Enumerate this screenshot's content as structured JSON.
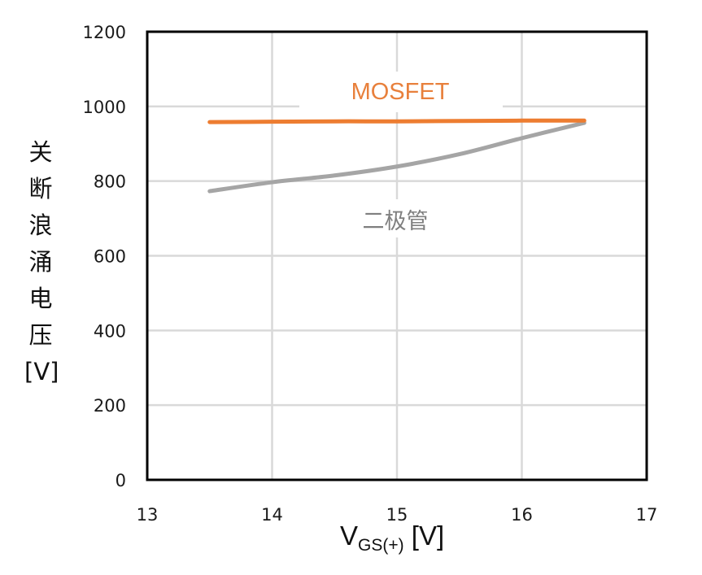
{
  "chart_data": {
    "type": "line",
    "title": "",
    "xlabel": "V_GS(+) [V]",
    "xlabel_main": "V",
    "xlabel_sub": "GS(+)",
    "xlabel_unit": " [V]",
    "ylabel": "关断浪涌电压 [V]",
    "ylabel_chars": [
      "关",
      "断",
      "浪",
      "涌",
      "电",
      "压",
      "[V]"
    ],
    "xlim": [
      13,
      17
    ],
    "ylim": [
      0,
      1200
    ],
    "x_ticks": [
      "13",
      "14",
      "15",
      "16",
      "17"
    ],
    "y_ticks": [
      "0",
      "200",
      "400",
      "600",
      "800",
      "1000",
      "1200"
    ],
    "grid": true,
    "legend": "inline labels",
    "x": [
      13.5,
      14,
      14.5,
      15,
      15.5,
      16,
      16.5
    ],
    "series": [
      {
        "name": "MOSFET",
        "color": "#ED7D31",
        "label_color": "#E8803C",
        "values": [
          958,
          959,
          960,
          960,
          961,
          962,
          962
        ]
      },
      {
        "name": "二极管",
        "color": "#A5A5A5",
        "label_color": "#7F7F7F",
        "values": [
          773,
          797,
          815,
          839,
          872,
          915,
          956
        ]
      }
    ]
  }
}
